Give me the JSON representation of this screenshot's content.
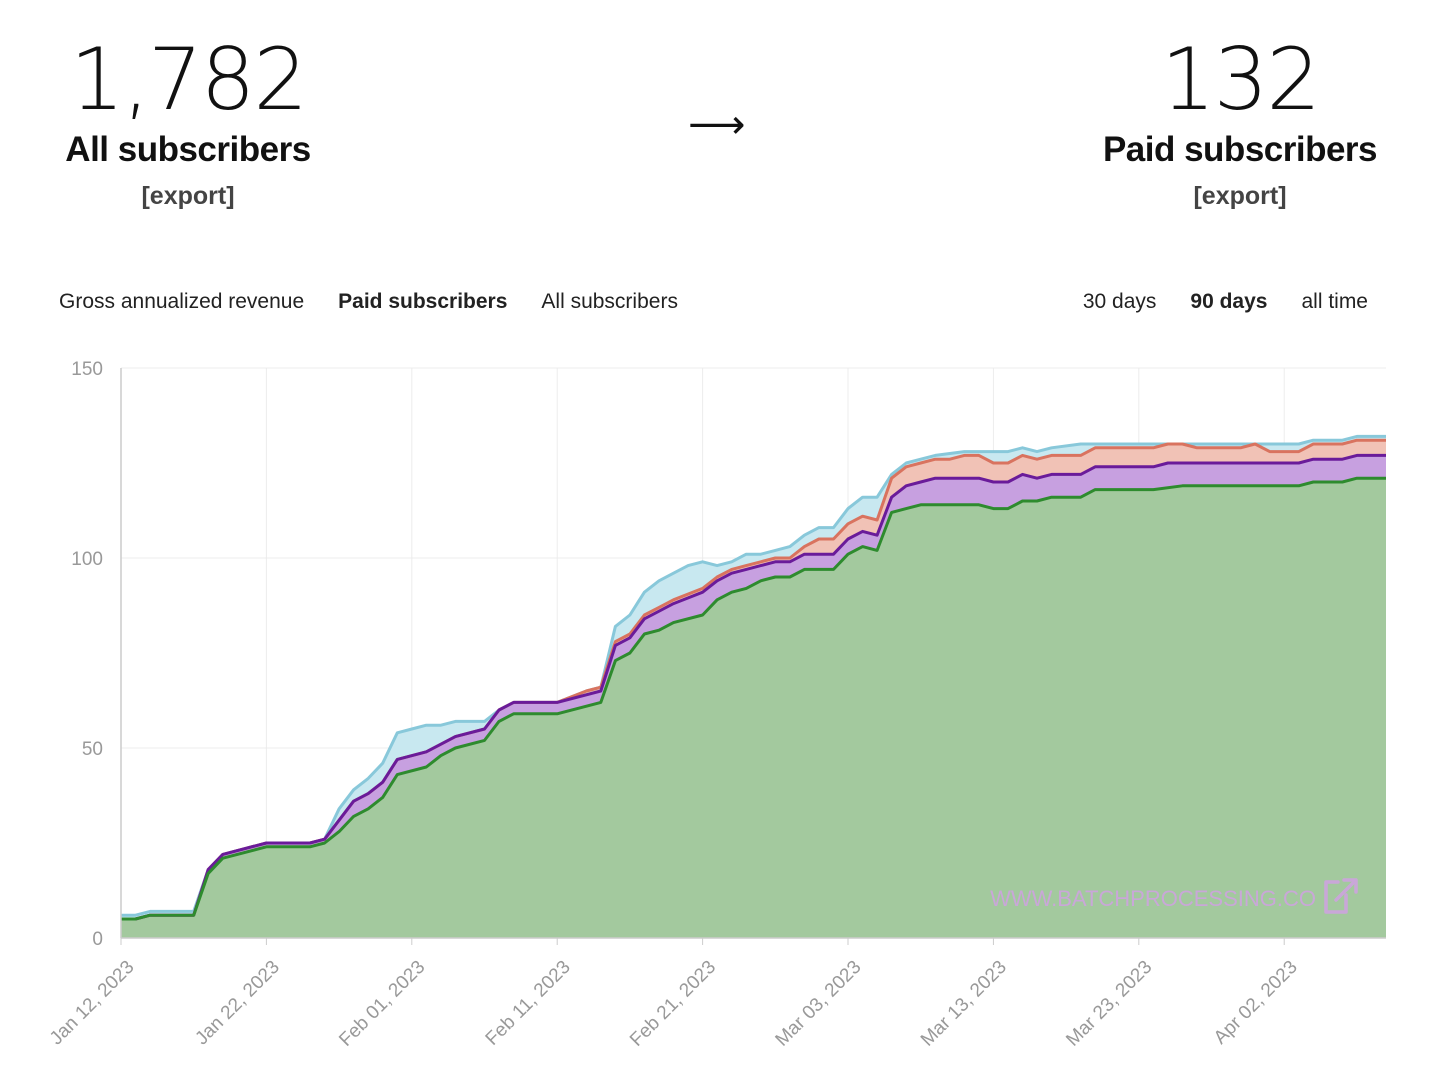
{
  "summary": {
    "all_count": "1,782",
    "all_label": "All subscribers",
    "all_export": "[export]",
    "arrow": "⟶",
    "paid_count": "132",
    "paid_label": "Paid subscribers",
    "paid_export": "[export]"
  },
  "metric_tabs": [
    "Gross annualized revenue",
    "Paid subscribers",
    "All subscribers"
  ],
  "metric_active": 1,
  "range_tabs": [
    "30 days",
    "90 days",
    "all time"
  ],
  "range_active": 1,
  "watermark": "WWW.BATCHPROCESSING.CO",
  "colors": {
    "green": "#2e8b2e",
    "green_fill": "#a3c99e",
    "purple": "#6a1b9a",
    "purple_fill": "#c7a0e0",
    "red": "#d9735f",
    "red_fill": "#f1c2b6",
    "cyan": "#88c8da",
    "cyan_fill": "#c8e8f0",
    "grid": "#ececec",
    "axis": "#cccccc"
  },
  "chart_data": {
    "type": "area",
    "stacked": true,
    "x_ticks": [
      "Jan 12, 2023",
      "Jan 22, 2023",
      "Feb 01, 2023",
      "Feb 11, 2023",
      "Feb 21, 2023",
      "Mar 03, 2023",
      "Mar 13, 2023",
      "Mar 23, 2023",
      "Apr 02, 2023"
    ],
    "y_ticks": [
      0,
      50,
      100,
      150
    ],
    "ylim": [
      0,
      150
    ],
    "xlim": [
      "Jan 12, 2023",
      "Apr 09, 2023"
    ],
    "grid": true,
    "series": [
      {
        "color_key": "green",
        "points": [
          [
            "Jan 12, 2023",
            5
          ],
          [
            "Jan 13, 2023",
            5
          ],
          [
            "Jan 14, 2023",
            6
          ],
          [
            "Jan 17, 2023",
            6
          ],
          [
            "Jan 18, 2023",
            17
          ],
          [
            "Jan 19, 2023",
            21
          ],
          [
            "Jan 22, 2023",
            24
          ],
          [
            "Jan 25, 2023",
            24
          ],
          [
            "Jan 26, 2023",
            25
          ],
          [
            "Jan 27, 2023",
            28
          ],
          [
            "Jan 28, 2023",
            32
          ],
          [
            "Jan 29, 2023",
            34
          ],
          [
            "Jan 30, 2023",
            37
          ],
          [
            "Jan 31, 2023",
            43
          ],
          [
            "Feb 02, 2023",
            45
          ],
          [
            "Feb 03, 2023",
            48
          ],
          [
            "Feb 04, 2023",
            50
          ],
          [
            "Feb 06, 2023",
            52
          ],
          [
            "Feb 07, 2023",
            57
          ],
          [
            "Feb 08, 2023",
            59
          ],
          [
            "Feb 11, 2023",
            59
          ],
          [
            "Feb 14, 2023",
            62
          ],
          [
            "Feb 15, 2023",
            73
          ],
          [
            "Feb 16, 2023",
            75
          ],
          [
            "Feb 17, 2023",
            80
          ],
          [
            "Feb 18, 2023",
            81
          ],
          [
            "Feb 19, 2023",
            83
          ],
          [
            "Feb 21, 2023",
            85
          ],
          [
            "Feb 22, 2023",
            89
          ],
          [
            "Feb 23, 2023",
            91
          ],
          [
            "Feb 24, 2023",
            92
          ],
          [
            "Feb 25, 2023",
            94
          ],
          [
            "Feb 26, 2023",
            95
          ],
          [
            "Feb 27, 2023",
            95
          ],
          [
            "Feb 28, 2023",
            97
          ],
          [
            "Mar 02, 2023",
            97
          ],
          [
            "Mar 03, 2023",
            101
          ],
          [
            "Mar 04, 2023",
            103
          ],
          [
            "Mar 05, 2023",
            102
          ],
          [
            "Mar 06, 2023",
            112
          ],
          [
            "Mar 07, 2023",
            113
          ],
          [
            "Mar 08, 2023",
            114
          ],
          [
            "Mar 12, 2023",
            114
          ],
          [
            "Mar 13, 2023",
            113
          ],
          [
            "Mar 14, 2023",
            113
          ],
          [
            "Mar 15, 2023",
            115
          ],
          [
            "Mar 16, 2023",
            115
          ],
          [
            "Mar 17, 2023",
            116
          ],
          [
            "Mar 19, 2023",
            116
          ],
          [
            "Mar 20, 2023",
            118
          ],
          [
            "Mar 24, 2023",
            118
          ],
          [
            "Mar 26, 2023",
            119
          ],
          [
            "Apr 03, 2023",
            119
          ],
          [
            "Apr 04, 2023",
            120
          ],
          [
            "Apr 06, 2023",
            120
          ],
          [
            "Apr 07, 2023",
            121
          ],
          [
            "Apr 09, 2023",
            121
          ]
        ]
      },
      {
        "color_key": "purple",
        "points": [
          [
            "Jan 12, 2023",
            5
          ],
          [
            "Jan 13, 2023",
            5
          ],
          [
            "Jan 14, 2023",
            6
          ],
          [
            "Jan 17, 2023",
            6
          ],
          [
            "Jan 18, 2023",
            18
          ],
          [
            "Jan 19, 2023",
            22
          ],
          [
            "Jan 22, 2023",
            25
          ],
          [
            "Jan 25, 2023",
            25
          ],
          [
            "Jan 26, 2023",
            26
          ],
          [
            "Jan 27, 2023",
            31
          ],
          [
            "Jan 28, 2023",
            36
          ],
          [
            "Jan 29, 2023",
            38
          ],
          [
            "Jan 30, 2023",
            41
          ],
          [
            "Jan 31, 2023",
            47
          ],
          [
            "Feb 02, 2023",
            49
          ],
          [
            "Feb 03, 2023",
            51
          ],
          [
            "Feb 04, 2023",
            53
          ],
          [
            "Feb 06, 2023",
            55
          ],
          [
            "Feb 07, 2023",
            60
          ],
          [
            "Feb 08, 2023",
            62
          ],
          [
            "Feb 11, 2023",
            62
          ],
          [
            "Feb 14, 2023",
            65
          ],
          [
            "Feb 15, 2023",
            77
          ],
          [
            "Feb 16, 2023",
            79
          ],
          [
            "Feb 17, 2023",
            84
          ],
          [
            "Feb 18, 2023",
            86
          ],
          [
            "Feb 19, 2023",
            88
          ],
          [
            "Feb 21, 2023",
            91
          ],
          [
            "Feb 22, 2023",
            94
          ],
          [
            "Feb 23, 2023",
            96
          ],
          [
            "Feb 24, 2023",
            97
          ],
          [
            "Feb 25, 2023",
            98
          ],
          [
            "Feb 26, 2023",
            99
          ],
          [
            "Feb 27, 2023",
            99
          ],
          [
            "Feb 28, 2023",
            101
          ],
          [
            "Mar 02, 2023",
            101
          ],
          [
            "Mar 03, 2023",
            105
          ],
          [
            "Mar 04, 2023",
            107
          ],
          [
            "Mar 05, 2023",
            106
          ],
          [
            "Mar 06, 2023",
            116
          ],
          [
            "Mar 07, 2023",
            119
          ],
          [
            "Mar 08, 2023",
            120
          ],
          [
            "Mar 09, 2023",
            121
          ],
          [
            "Mar 12, 2023",
            121
          ],
          [
            "Mar 13, 2023",
            120
          ],
          [
            "Mar 14, 2023",
            120
          ],
          [
            "Mar 15, 2023",
            122
          ],
          [
            "Mar 16, 2023",
            121
          ],
          [
            "Mar 17, 2023",
            122
          ],
          [
            "Mar 19, 2023",
            122
          ],
          [
            "Mar 20, 2023",
            124
          ],
          [
            "Mar 24, 2023",
            124
          ],
          [
            "Mar 25, 2023",
            125
          ],
          [
            "Apr 03, 2023",
            125
          ],
          [
            "Apr 04, 2023",
            126
          ],
          [
            "Apr 06, 2023",
            126
          ],
          [
            "Apr 07, 2023",
            127
          ],
          [
            "Apr 09, 2023",
            127
          ]
        ]
      },
      {
        "color_key": "red",
        "points": [
          [
            "Jan 12, 2023",
            5
          ],
          [
            "Jan 13, 2023",
            5
          ],
          [
            "Jan 14, 2023",
            6
          ],
          [
            "Jan 17, 2023",
            6
          ],
          [
            "Jan 18, 2023",
            18
          ],
          [
            "Jan 19, 2023",
            22
          ],
          [
            "Jan 22, 2023",
            25
          ],
          [
            "Jan 25, 2023",
            25
          ],
          [
            "Jan 26, 2023",
            26
          ],
          [
            "Jan 27, 2023",
            31
          ],
          [
            "Jan 28, 2023",
            36
          ],
          [
            "Jan 29, 2023",
            38
          ],
          [
            "Jan 30, 2023",
            41
          ],
          [
            "Jan 31, 2023",
            47
          ],
          [
            "Feb 02, 2023",
            49
          ],
          [
            "Feb 03, 2023",
            51
          ],
          [
            "Feb 04, 2023",
            53
          ],
          [
            "Feb 06, 2023",
            55
          ],
          [
            "Feb 07, 2023",
            60
          ],
          [
            "Feb 08, 2023",
            62
          ],
          [
            "Feb 11, 2023",
            62
          ],
          [
            "Feb 13, 2023",
            65
          ],
          [
            "Feb 14, 2023",
            66
          ],
          [
            "Feb 15, 2023",
            78
          ],
          [
            "Feb 16, 2023",
            80
          ],
          [
            "Feb 17, 2023",
            85
          ],
          [
            "Feb 18, 2023",
            87
          ],
          [
            "Feb 19, 2023",
            89
          ],
          [
            "Feb 21, 2023",
            92
          ],
          [
            "Feb 22, 2023",
            95
          ],
          [
            "Feb 23, 2023",
            97
          ],
          [
            "Feb 24, 2023",
            98
          ],
          [
            "Feb 25, 2023",
            99
          ],
          [
            "Feb 26, 2023",
            100
          ],
          [
            "Feb 27, 2023",
            100
          ],
          [
            "Feb 28, 2023",
            103
          ],
          [
            "Mar 01, 2023",
            105
          ],
          [
            "Mar 02, 2023",
            105
          ],
          [
            "Mar 03, 2023",
            109
          ],
          [
            "Mar 04, 2023",
            111
          ],
          [
            "Mar 05, 2023",
            110
          ],
          [
            "Mar 06, 2023",
            121
          ],
          [
            "Mar 07, 2023",
            124
          ],
          [
            "Mar 08, 2023",
            125
          ],
          [
            "Mar 09, 2023",
            126
          ],
          [
            "Mar 10, 2023",
            126
          ],
          [
            "Mar 11, 2023",
            127
          ],
          [
            "Mar 12, 2023",
            127
          ],
          [
            "Mar 13, 2023",
            125
          ],
          [
            "Mar 14, 2023",
            125
          ],
          [
            "Mar 15, 2023",
            127
          ],
          [
            "Mar 16, 2023",
            126
          ],
          [
            "Mar 17, 2023",
            127
          ],
          [
            "Mar 19, 2023",
            127
          ],
          [
            "Mar 20, 2023",
            129
          ],
          [
            "Mar 24, 2023",
            129
          ],
          [
            "Mar 25, 2023",
            130
          ],
          [
            "Mar 26, 2023",
            130
          ],
          [
            "Mar 27, 2023",
            129
          ],
          [
            "Mar 30, 2023",
            129
          ],
          [
            "Mar 31, 2023",
            130
          ],
          [
            "Apr 01, 2023",
            128
          ],
          [
            "Apr 03, 2023",
            128
          ],
          [
            "Apr 04, 2023",
            130
          ],
          [
            "Apr 06, 2023",
            130
          ],
          [
            "Apr 07, 2023",
            131
          ],
          [
            "Apr 09, 2023",
            131
          ]
        ]
      },
      {
        "color_key": "cyan",
        "points": [
          [
            "Jan 12, 2023",
            6
          ],
          [
            "Jan 13, 2023",
            6
          ],
          [
            "Jan 14, 2023",
            7
          ],
          [
            "Jan 17, 2023",
            7
          ],
          [
            "Jan 18, 2023",
            18
          ],
          [
            "Jan 19, 2023",
            22
          ],
          [
            "Jan 22, 2023",
            25
          ],
          [
            "Jan 25, 2023",
            25
          ],
          [
            "Jan 26, 2023",
            26
          ],
          [
            "Jan 27, 2023",
            34
          ],
          [
            "Jan 28, 2023",
            39
          ],
          [
            "Jan 29, 2023",
            42
          ],
          [
            "Jan 30, 2023",
            46
          ],
          [
            "Jan 31, 2023",
            54
          ],
          [
            "Feb 01, 2023",
            55
          ],
          [
            "Feb 02, 2023",
            56
          ],
          [
            "Feb 03, 2023",
            56
          ],
          [
            "Feb 04, 2023",
            57
          ],
          [
            "Feb 06, 2023",
            57
          ],
          [
            "Feb 07, 2023",
            60
          ],
          [
            "Feb 08, 2023",
            62
          ],
          [
            "Feb 11, 2023",
            62
          ],
          [
            "Feb 13, 2023",
            65
          ],
          [
            "Feb 14, 2023",
            66
          ],
          [
            "Feb 15, 2023",
            82
          ],
          [
            "Feb 16, 2023",
            85
          ],
          [
            "Feb 17, 2023",
            91
          ],
          [
            "Feb 18, 2023",
            94
          ],
          [
            "Feb 19, 2023",
            96
          ],
          [
            "Feb 20, 2023",
            98
          ],
          [
            "Feb 21, 2023",
            99
          ],
          [
            "Feb 22, 2023",
            98
          ],
          [
            "Feb 23, 2023",
            99
          ],
          [
            "Feb 24, 2023",
            101
          ],
          [
            "Feb 25, 2023",
            101
          ],
          [
            "Feb 26, 2023",
            102
          ],
          [
            "Feb 27, 2023",
            103
          ],
          [
            "Feb 28, 2023",
            106
          ],
          [
            "Mar 01, 2023",
            108
          ],
          [
            "Mar 02, 2023",
            108
          ],
          [
            "Mar 03, 2023",
            113
          ],
          [
            "Mar 04, 2023",
            116
          ],
          [
            "Mar 05, 2023",
            116
          ],
          [
            "Mar 06, 2023",
            122
          ],
          [
            "Mar 07, 2023",
            125
          ],
          [
            "Mar 08, 2023",
            126
          ],
          [
            "Mar 09, 2023",
            127
          ],
          [
            "Mar 11, 2023",
            128
          ],
          [
            "Mar 13, 2023",
            128
          ],
          [
            "Mar 14, 2023",
            128
          ],
          [
            "Mar 15, 2023",
            129
          ],
          [
            "Mar 16, 2023",
            128
          ],
          [
            "Mar 17, 2023",
            129
          ],
          [
            "Mar 19, 2023",
            130
          ],
          [
            "Mar 20, 2023",
            130
          ],
          [
            "Apr 03, 2023",
            130
          ],
          [
            "Apr 04, 2023",
            131
          ],
          [
            "Apr 06, 2023",
            131
          ],
          [
            "Apr 07, 2023",
            132
          ],
          [
            "Apr 09, 2023",
            132
          ]
        ]
      }
    ]
  }
}
